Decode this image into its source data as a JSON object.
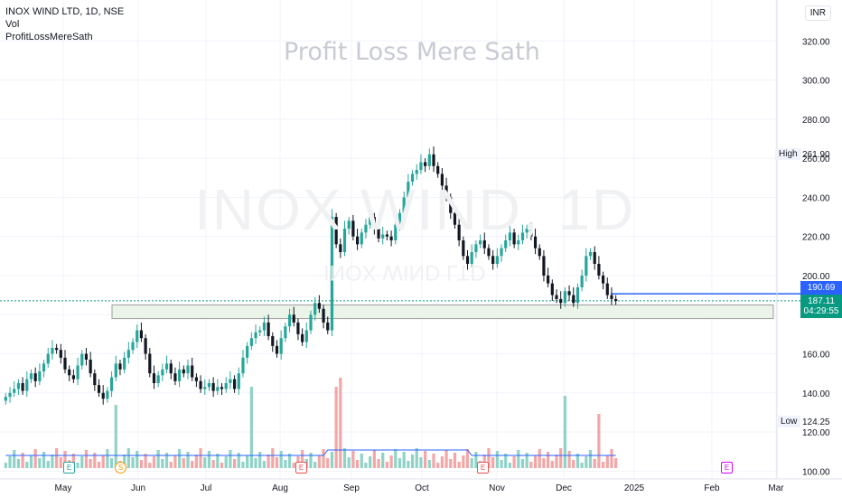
{
  "header": {
    "symbol": "INOX WIND LTD, 1D, NSE",
    "vol_label": "Vol",
    "indicator_label": "ProfitLossMereSath"
  },
  "watermark": "Profit Loss Mere Sath",
  "big_watermark": "INOX WIND, 1D",
  "big_watermark_sub": "INOX WIND LTD",
  "currency": "INR",
  "high_label": "High",
  "high_value": "261.90",
  "low_label": "Low",
  "low_value": "124.25",
  "price_blue": "190.69",
  "price_green": "187.11",
  "countdown": "04:29:55",
  "colors": {
    "up": "#26a69a",
    "down": "#131722",
    "vol_up": "#8fd3c8",
    "vol_down": "#f4a6a6",
    "zone": "#eaf4e8",
    "blue": "#2962ff",
    "green": "#089981"
  },
  "chart_data": {
    "type": "candlestick",
    "x_ticks": [
      "May",
      "Jun",
      "Jul",
      "Aug",
      "Sep",
      "Oct",
      "Nov",
      "Dec",
      "2025",
      "Feb",
      "Mar"
    ],
    "y_ticks": [
      100,
      120,
      140,
      160,
      180,
      200,
      220,
      240,
      260,
      280,
      300,
      320
    ],
    "ylim": [
      96,
      328
    ],
    "closes": [
      138,
      140,
      142,
      145,
      141,
      147,
      150,
      146,
      151,
      155,
      160,
      163,
      162,
      158,
      152,
      149,
      147,
      154,
      160,
      157,
      150,
      144,
      140,
      137,
      141,
      148,
      155,
      152,
      158,
      162,
      166,
      172,
      168,
      160,
      150,
      145,
      149,
      152,
      155,
      150,
      146,
      152,
      150,
      154,
      148,
      146,
      142,
      143,
      145,
      141,
      143,
      142,
      145,
      147,
      142,
      150,
      158,
      164,
      168,
      171,
      172,
      176,
      169,
      164,
      160,
      168,
      174,
      180,
      176,
      170,
      166,
      172,
      180,
      186,
      183,
      176,
      172,
      230,
      216,
      212,
      224,
      228,
      220,
      216,
      222,
      226,
      230,
      224,
      219,
      221,
      220,
      218,
      226,
      232,
      240,
      248,
      252,
      254,
      258,
      256,
      262,
      256,
      252,
      246,
      240,
      232,
      226,
      218,
      210,
      206,
      212,
      216,
      218,
      214,
      210,
      206,
      210,
      214,
      218,
      222,
      216,
      218,
      222,
      224,
      220,
      214,
      210,
      200,
      196,
      190,
      188,
      186,
      192,
      190,
      186,
      194,
      200,
      210,
      212,
      206,
      200,
      196,
      190,
      188,
      187
    ]
  },
  "markers": [
    "E",
    "S",
    "E",
    "E",
    "E"
  ]
}
